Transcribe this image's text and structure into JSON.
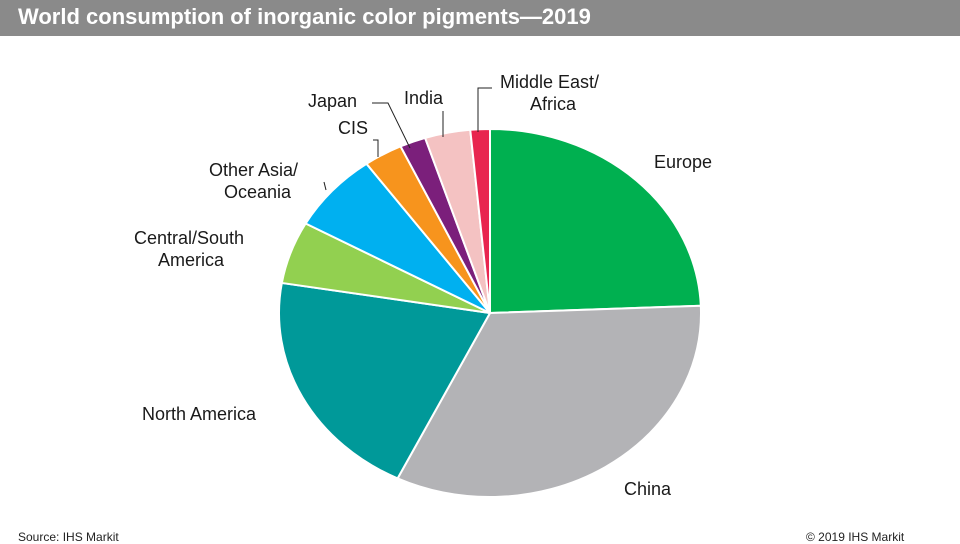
{
  "title": "World consumption  of inorganic color pigments—2019",
  "source": "Source: IHS Markit",
  "copyright": "© 2019 IHS Markit",
  "chart_data": {
    "type": "pie",
    "title": "World consumption  of inorganic color pigments—2019",
    "unit": "percent of world consumption",
    "slices": [
      {
        "label": "Europe",
        "value": 24.5,
        "color": "#00b050"
      },
      {
        "label": "China",
        "value": 33.0,
        "color": "#b3b3b6"
      },
      {
        "label": "North America",
        "value": 20.5,
        "color": "#009999"
      },
      {
        "label": "Central/South America",
        "value": 5.5,
        "color": "#92d050"
      },
      {
        "label": "Other Asia/ Oceania",
        "value": 7.0,
        "color": "#00b0f0"
      },
      {
        "label": "CIS",
        "value": 3.0,
        "color": "#f7941d"
      },
      {
        "label": "Japan",
        "value": 2.0,
        "color": "#7b1f7b"
      },
      {
        "label": "India",
        "value": 3.5,
        "color": "#f4c2c2"
      },
      {
        "label": "Middle East/ Africa",
        "value": 1.5,
        "color": "#e8254f"
      }
    ]
  }
}
